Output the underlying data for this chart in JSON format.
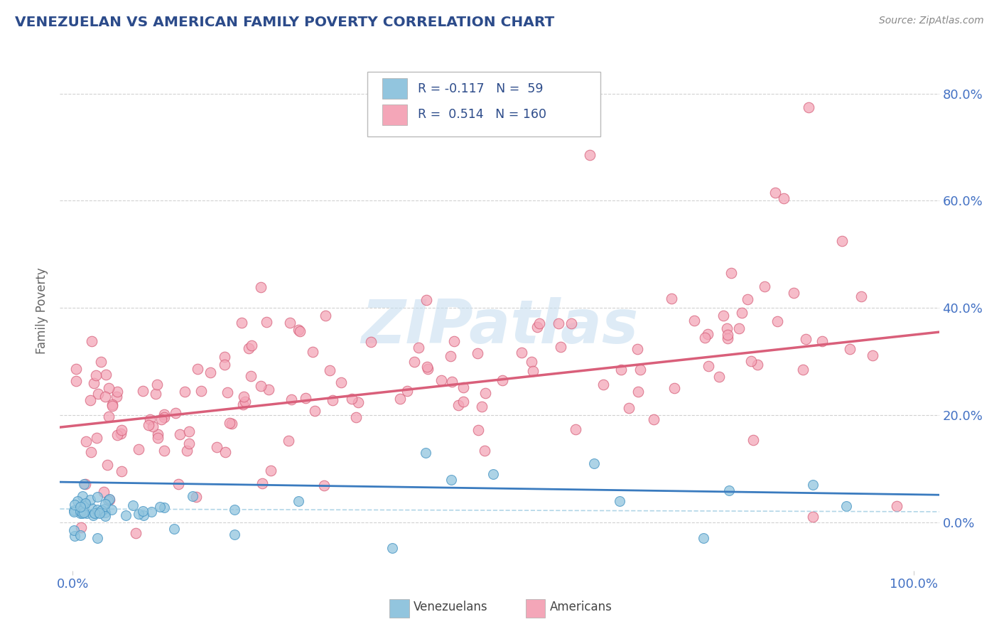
{
  "title": "VENEZUELAN VS AMERICAN FAMILY POVERTY CORRELATION CHART",
  "source": "Source: ZipAtlas.com",
  "ylabel": "Family Poverty",
  "legend_label1": "Venezuelans",
  "legend_label2": "Americans",
  "R1": -0.117,
  "N1": 59,
  "R2": 0.514,
  "N2": 160,
  "color_blue": "#92c5de",
  "color_blue_edge": "#4393c3",
  "color_pink": "#f4a6b8",
  "color_pink_edge": "#d6607a",
  "color_trend_blue": "#3a7bbf",
  "color_trend_pink": "#d95f7a",
  "color_trend_blue_dash": "#92c5de",
  "watermark_color": "#c8dff0",
  "bg_color": "#ffffff",
  "grid_color": "#cccccc",
  "title_color": "#2c4b8a",
  "tick_color": "#4472c4",
  "legend_text_color": "#2c4b8a",
  "ylabel_color": "#666666",
  "source_color": "#888888",
  "seed": 7
}
